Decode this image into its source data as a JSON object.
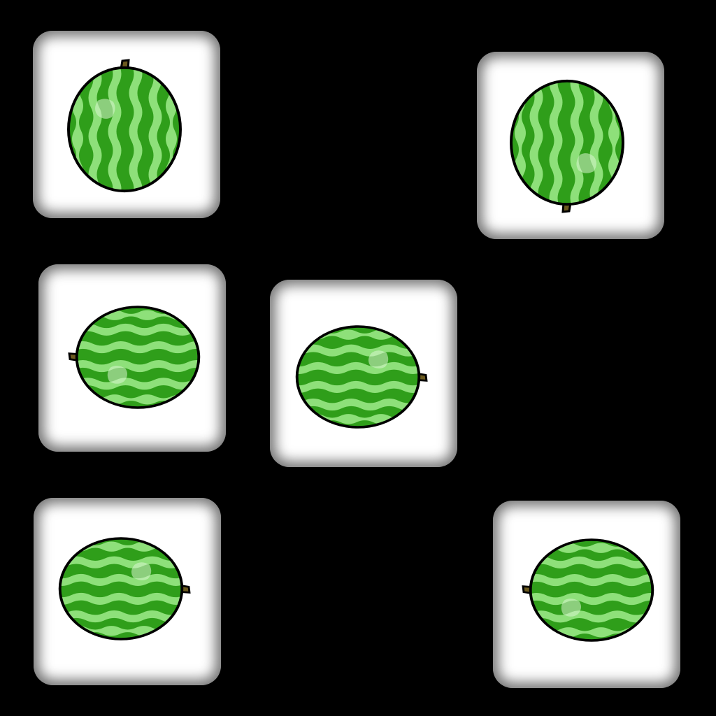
{
  "board": {
    "background": "#000000",
    "tile_color": "#ffffff",
    "tiles": [
      {
        "id": 1,
        "item": "watermelon",
        "icon": "watermelon-icon",
        "orientation": "vertical",
        "stem": "top"
      },
      {
        "id": 2,
        "item": "watermelon",
        "icon": "watermelon-icon",
        "orientation": "vertical",
        "stem": "bottom"
      },
      {
        "id": 3,
        "item": "watermelon",
        "icon": "watermelon-icon",
        "orientation": "horizontal",
        "stem": "left"
      },
      {
        "id": 4,
        "item": "watermelon",
        "icon": "watermelon-icon",
        "orientation": "horizontal",
        "stem": "right"
      },
      {
        "id": 5,
        "item": "watermelon",
        "icon": "watermelon-icon",
        "orientation": "horizontal",
        "stem": "right"
      },
      {
        "id": 6,
        "item": "watermelon",
        "icon": "watermelon-icon",
        "orientation": "horizontal",
        "stem": "left"
      }
    ]
  },
  "colors": {
    "rind_dark": "#2f9e1a",
    "rind_light": "#8ee07a",
    "outline": "#000000",
    "stem": "#6b5a1e",
    "highlight": "#d8f5cf"
  }
}
